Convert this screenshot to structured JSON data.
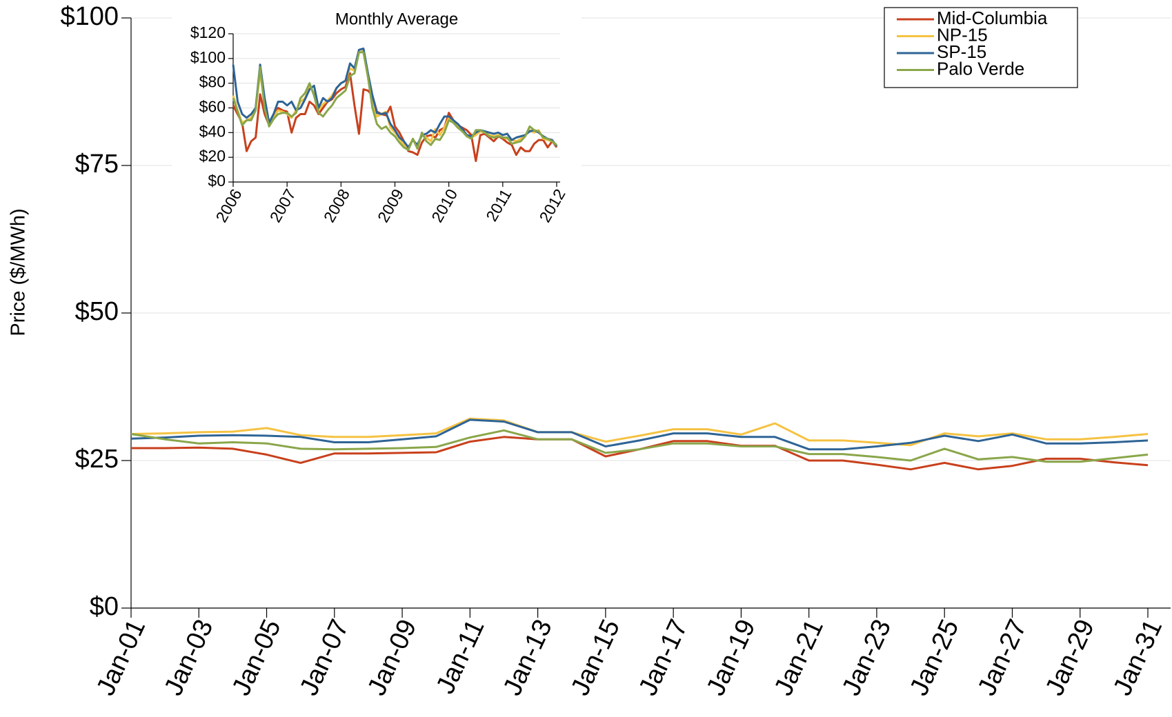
{
  "chart_data": [
    {
      "type": "line",
      "y_label": "Price ($/MWh)",
      "categories": [
        "Jan-01",
        null,
        "Jan-03",
        null,
        "Jan-05",
        null,
        "Jan-07",
        null,
        "Jan-09",
        null,
        "Jan-11",
        null,
        "Jan-13",
        null,
        "Jan-15",
        null,
        "Jan-17",
        null,
        "Jan-19",
        null,
        "Jan-21",
        null,
        "Jan-23",
        null,
        "Jan-25",
        null,
        "Jan-27",
        null,
        "Jan-29",
        null,
        "Jan-31"
      ],
      "series": [
        {
          "name": "Mid-Columbia",
          "color": "#c8401c",
          "values": [
            27.1,
            27.1,
            27.2,
            27.0,
            26.0,
            24.6,
            26.2,
            26.2,
            26.3,
            26.4,
            28.2,
            29.0,
            28.6,
            28.6,
            25.7,
            26.9,
            28.3,
            28.3,
            27.5,
            27.5,
            25.0,
            25.0,
            24.3,
            23.5,
            24.6,
            23.5,
            24.1,
            25.3,
            25.3,
            24.7,
            24.2
          ]
        },
        {
          "name": "NP-15",
          "color": "#f5c242",
          "values": [
            29.5,
            29.6,
            29.8,
            29.9,
            30.5,
            29.3,
            29.0,
            29.0,
            29.3,
            29.6,
            32.1,
            31.8,
            29.8,
            29.8,
            28.2,
            29.2,
            30.3,
            30.3,
            29.4,
            31.3,
            28.4,
            28.4,
            28.0,
            27.6,
            29.6,
            29.1,
            29.6,
            28.6,
            28.6,
            29.0,
            29.5
          ]
        },
        {
          "name": "SP-15",
          "color": "#2e6496",
          "values": [
            28.7,
            28.9,
            29.2,
            29.3,
            29.2,
            29.0,
            28.1,
            28.1,
            28.6,
            29.1,
            31.9,
            31.6,
            29.8,
            29.8,
            27.4,
            28.4,
            29.6,
            29.6,
            29.0,
            29.0,
            26.9,
            26.9,
            27.4,
            28.0,
            29.2,
            28.3,
            29.4,
            27.9,
            27.9,
            28.1,
            28.4
          ]
        },
        {
          "name": "Palo Verde",
          "color": "#8aa64a",
          "values": [
            29.5,
            28.6,
            27.9,
            28.1,
            27.9,
            27.0,
            26.9,
            27.0,
            27.1,
            27.3,
            28.9,
            30.1,
            28.6,
            28.6,
            26.3,
            26.9,
            27.9,
            27.9,
            27.4,
            27.4,
            26.1,
            26.1,
            25.6,
            25.0,
            27.0,
            25.2,
            25.6,
            24.8,
            24.8,
            25.4,
            26.0
          ]
        }
      ],
      "ylim": [
        0,
        100
      ],
      "yticks": [
        {
          "value": 0,
          "label": "$0"
        },
        {
          "value": 25,
          "label": "$25"
        },
        {
          "value": 50,
          "label": "$50"
        },
        {
          "value": 75,
          "label": "$75"
        },
        {
          "value": 100,
          "label": "$100"
        }
      ],
      "grid": true,
      "legend": "upper right"
    },
    {
      "type": "line",
      "title": "Monthly Average",
      "categories": [
        "2006",
        null,
        null,
        null,
        null,
        null,
        null,
        null,
        null,
        null,
        null,
        null,
        "2007",
        null,
        null,
        null,
        null,
        null,
        null,
        null,
        null,
        null,
        null,
        null,
        "2008",
        null,
        null,
        null,
        null,
        null,
        null,
        null,
        null,
        null,
        null,
        null,
        "2009",
        null,
        null,
        null,
        null,
        null,
        null,
        null,
        null,
        null,
        null,
        null,
        "2010",
        null,
        null,
        null,
        null,
        null,
        null,
        null,
        null,
        null,
        null,
        null,
        "2011",
        null,
        null,
        null,
        null,
        null,
        null,
        null,
        null,
        null,
        null,
        null,
        "2012"
      ],
      "series": [
        {
          "name": "Mid-Columbia",
          "color": "#c8401c",
          "values": [
            62,
            55,
            48,
            25,
            33,
            36,
            71,
            55,
            46,
            52,
            60,
            58,
            57,
            40,
            52,
            55,
            55,
            65,
            62,
            55,
            60,
            65,
            67,
            72,
            75,
            77,
            88,
            62,
            39,
            75,
            74,
            70,
            57,
            55,
            54,
            61,
            45,
            40,
            33,
            25,
            24,
            22,
            32,
            37,
            38,
            36,
            42,
            44,
            56,
            50,
            46,
            44,
            42,
            38,
            17,
            38,
            39,
            36,
            33,
            37,
            35,
            32,
            30,
            22,
            28,
            25,
            25,
            31,
            34,
            34,
            28,
            33,
            28
          ]
        },
        {
          "name": "NP-15",
          "color": "#f5c242",
          "values": [
            70,
            58,
            48,
            50,
            52,
            60,
            88,
            65,
            47,
            53,
            58,
            57,
            55,
            52,
            58,
            65,
            68,
            78,
            72,
            58,
            63,
            66,
            70,
            76,
            80,
            82,
            92,
            90,
            105,
            106,
            85,
            65,
            53,
            55,
            57,
            44,
            40,
            35,
            30,
            28,
            35,
            28,
            38,
            36,
            33,
            43,
            38,
            44,
            52,
            48,
            46,
            42,
            37,
            36,
            38,
            41,
            40,
            38,
            37,
            38,
            36,
            35,
            34,
            33,
            35,
            38,
            42,
            40,
            42,
            35,
            34,
            33,
            29
          ]
        },
        {
          "name": "SP-15",
          "color": "#2e6496",
          "values": [
            95,
            65,
            55,
            52,
            55,
            60,
            95,
            68,
            48,
            55,
            65,
            65,
            62,
            65,
            58,
            60,
            67,
            75,
            78,
            60,
            68,
            65,
            68,
            76,
            80,
            82,
            96,
            92,
            107,
            108,
            88,
            70,
            56,
            55,
            56,
            47,
            42,
            36,
            33,
            28,
            34,
            30,
            38,
            39,
            42,
            40,
            47,
            53,
            53,
            50,
            47,
            43,
            38,
            37,
            40,
            42,
            41,
            40,
            39,
            40,
            38,
            39,
            34,
            36,
            37,
            38,
            41,
            42,
            40,
            37,
            35,
            34,
            29
          ]
        },
        {
          "name": "Palo Verde",
          "color": "#8aa64a",
          "values": [
            68,
            57,
            46,
            50,
            50,
            58,
            93,
            60,
            45,
            51,
            55,
            56,
            56,
            53,
            56,
            68,
            72,
            80,
            70,
            56,
            53,
            58,
            62,
            68,
            71,
            74,
            86,
            88,
            105,
            105,
            85,
            60,
            47,
            43,
            45,
            40,
            37,
            32,
            28,
            26,
            35,
            27,
            40,
            33,
            30,
            35,
            34,
            40,
            50,
            48,
            44,
            41,
            37,
            35,
            42,
            42,
            40,
            37,
            36,
            37,
            36,
            36,
            31,
            32,
            33,
            37,
            45,
            42,
            41,
            36,
            35,
            33,
            30
          ]
        }
      ],
      "ylim": [
        0,
        120
      ],
      "yticks": [
        {
          "value": 0,
          "label": "$0"
        },
        {
          "value": 20,
          "label": "$20"
        },
        {
          "value": 40,
          "label": "$40"
        },
        {
          "value": 60,
          "label": "$60"
        },
        {
          "value": 80,
          "label": "$80"
        },
        {
          "value": 100,
          "label": "$100"
        },
        {
          "value": 120,
          "label": "$120"
        }
      ],
      "grid": true
    }
  ]
}
